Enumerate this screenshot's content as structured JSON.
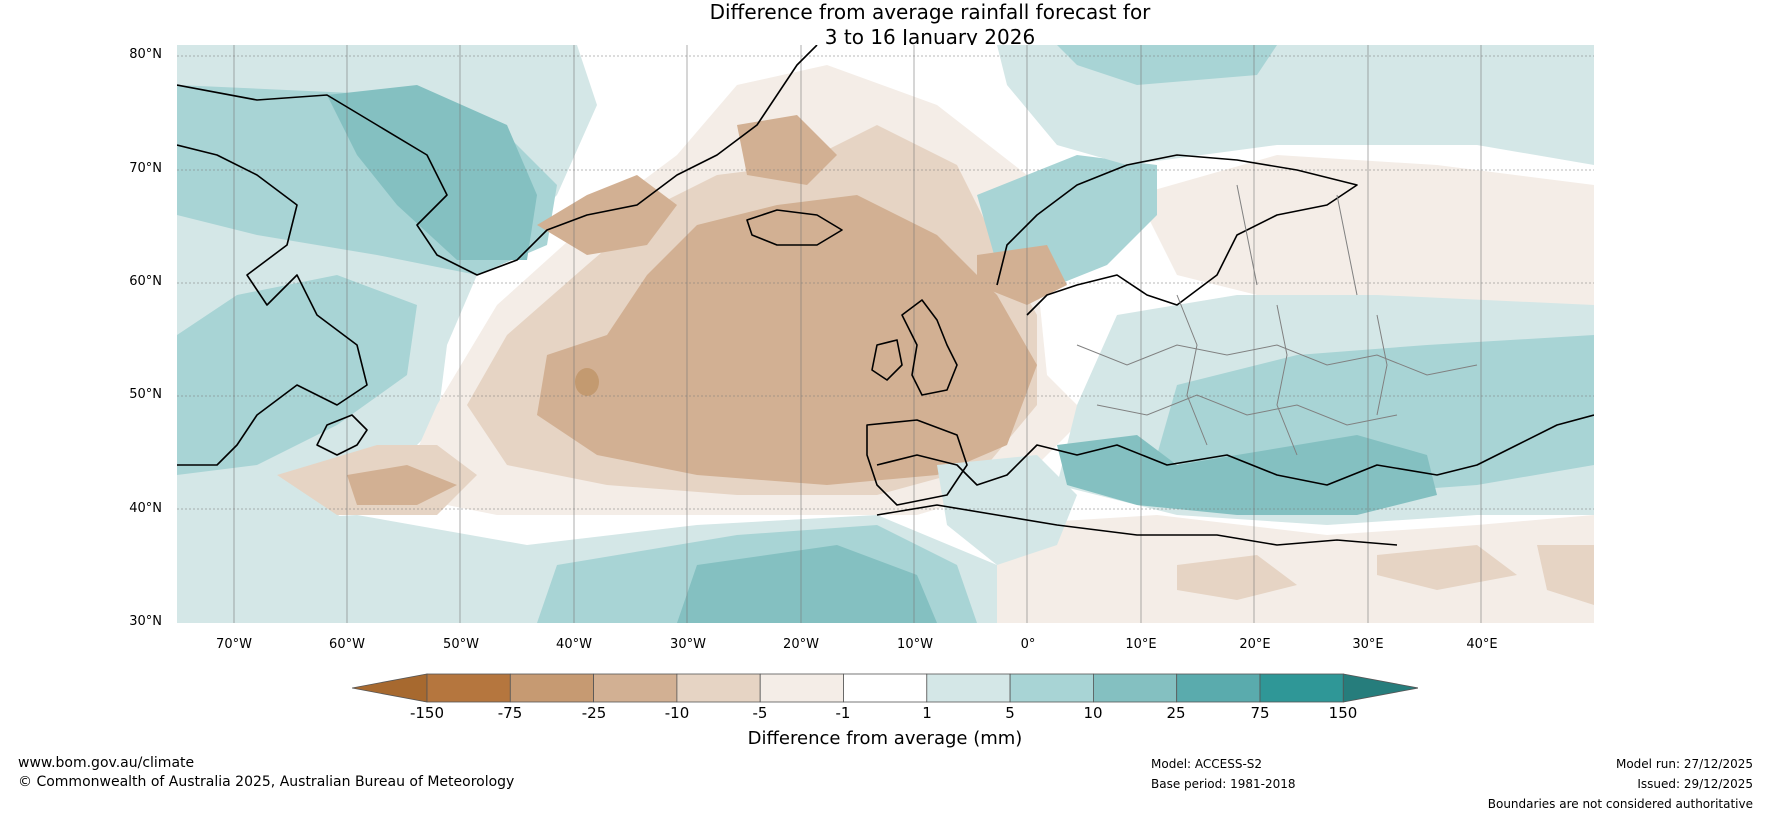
{
  "title": {
    "line1": "Difference from average rainfall forecast for",
    "line2": "3 to 16 January 2026"
  },
  "map": {
    "region": "North Atlantic and Europe",
    "lat_labels": [
      "80°N",
      "70°N",
      "60°N",
      "50°N",
      "40°N",
      "30°N"
    ],
    "lon_labels": [
      "70°W",
      "60°W",
      "50°W",
      "40°W",
      "30°W",
      "20°W",
      "10°W",
      "0°",
      "10°E",
      "20°E",
      "30°E",
      "40°E"
    ],
    "lat_range": [
      30,
      81
    ],
    "lon_range": [
      -75,
      50
    ],
    "colors": {
      "dry_light": "#f4ede7",
      "dry_medium": "#e6d4c4",
      "dry_strong": "#d2b093",
      "dry_extreme": "#c39a70",
      "wet_light": "#d4e7e7",
      "wet_medium": "#a8d4d5",
      "wet_strong": "#84c0c1",
      "coast": "#000000",
      "border": "#808080"
    }
  },
  "colorbar": {
    "title": "Difference from average (mm)",
    "labels": [
      "-150",
      "-75",
      "-25",
      "-10",
      "-5",
      "-1",
      "1",
      "5",
      "10",
      "25",
      "75",
      "150"
    ],
    "colors": [
      "#a7692f",
      "#b5763e",
      "#c69a72",
      "#d2b093",
      "#e6d4c4",
      "#f4ede7",
      "#ffffff",
      "#d4e7e7",
      "#a8d4d5",
      "#84c0c1",
      "#5aabad",
      "#2f9797",
      "#267d7c"
    ]
  },
  "footer": {
    "url": "www.bom.gov.au/climate",
    "copyright": "© Commonwealth of Australia 2025, Australian Bureau of Meteorology",
    "model": "Model: ACCESS-S2",
    "base_period": "Base period: 1981-2018",
    "model_run": "Model run: 27/12/2025",
    "issued": "Issued: 29/12/2025",
    "boundaries": "Boundaries are not considered authoritative"
  }
}
